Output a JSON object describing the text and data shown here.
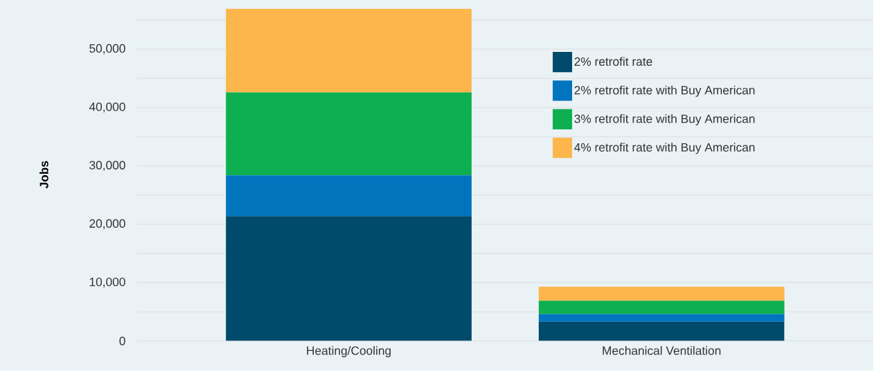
{
  "chart_data": {
    "type": "bar",
    "stacked": true,
    "ylabel": "Jobs",
    "categories": [
      "Heating/Cooling",
      "Mechanical Ventilation"
    ],
    "series": [
      {
        "name": "2% retrofit rate",
        "color": "#004a6b",
        "values": [
          21400,
          3300
        ]
      },
      {
        "name": "2% retrofit rate with Buy American",
        "color": "#0075be",
        "values": [
          7000,
          1300
        ]
      },
      {
        "name": "3% retrofit rate with Buy American",
        "color": "#0daf51",
        "values": [
          14200,
          2300
        ]
      },
      {
        "name": "4% retrofit rate with Buy American",
        "color": "#fcb64b",
        "values": [
          14300,
          2400
        ]
      }
    ],
    "ylim": [
      0,
      57000
    ],
    "yticks": [
      0,
      {
        "value": 5000,
        "label": null
      },
      {
        "value": 10000,
        "label": "10,000"
      },
      {
        "value": 15000,
        "label": null
      },
      {
        "value": 20000,
        "label": "20,000"
      },
      {
        "value": 25000,
        "label": null
      },
      {
        "value": 30000,
        "label": "30,000"
      },
      {
        "value": 35000,
        "label": null
      },
      {
        "value": 40000,
        "label": "40,000"
      },
      {
        "value": 45000,
        "label": null
      },
      {
        "value": 50000,
        "label": "50,000"
      },
      {
        "value": 55000,
        "label": null
      }
    ],
    "grid": "y",
    "legend": "top right"
  }
}
